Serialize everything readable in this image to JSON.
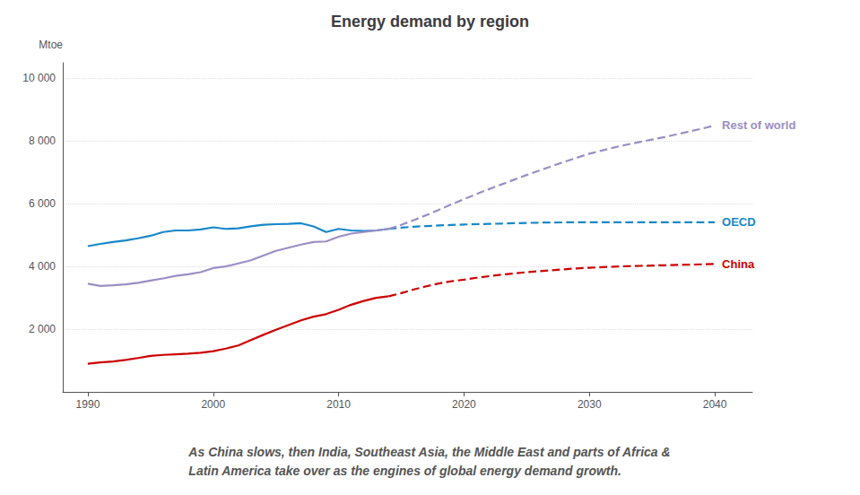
{
  "chart_data": {
    "type": "line",
    "title": "Energy demand by region",
    "subtitle": "As China slows, then India, Southeast Asia, the Middle East and parts of Africa &\nLatin America take over as the engines of global energy demand growth.",
    "ylabel": "Mtoe",
    "x": [
      1990,
      1991,
      1992,
      1993,
      1994,
      1995,
      1996,
      1997,
      1998,
      1999,
      2000,
      2001,
      2002,
      2003,
      2004,
      2005,
      2006,
      2007,
      2008,
      2009,
      2010,
      2011,
      2012,
      2013,
      2014,
      2015,
      2016,
      2017,
      2018,
      2019,
      2020,
      2021,
      2022,
      2023,
      2024,
      2025,
      2026,
      2027,
      2028,
      2029,
      2030,
      2031,
      2032,
      2033,
      2034,
      2035,
      2036,
      2037,
      2038,
      2039,
      2040
    ],
    "series": [
      {
        "name": "OECD",
        "color": "#1787C8",
        "line_style": "solid",
        "values": [
          4650,
          4720,
          4780,
          4830,
          4900,
          4980,
          5100,
          5150,
          5150,
          5180,
          5250,
          5200,
          5220,
          5280,
          5330,
          5350,
          5360,
          5380,
          5280,
          5100,
          5200,
          5150,
          5130,
          5150,
          5200,
          null,
          null,
          null,
          null,
          null,
          null,
          null,
          null,
          null,
          null,
          null,
          null,
          null,
          null,
          null,
          null,
          null,
          null,
          null,
          null,
          null,
          null,
          null,
          null,
          null,
          null
        ]
      },
      {
        "name": "OECD",
        "color": "#1787C8",
        "line_style": "dashed",
        "values": [
          null,
          null,
          null,
          null,
          null,
          null,
          null,
          null,
          null,
          null,
          null,
          null,
          null,
          null,
          null,
          null,
          null,
          null,
          null,
          null,
          null,
          null,
          null,
          null,
          5200,
          5240,
          5270,
          5290,
          5310,
          5325,
          5340,
          5350,
          5360,
          5370,
          5380,
          5390,
          5400,
          5405,
          5408,
          5410,
          5410,
          5410,
          5410,
          5410,
          5410,
          5410,
          5410,
          5410,
          5410,
          5410,
          5410
        ]
      },
      {
        "name": "China",
        "color": "#CC0000",
        "line_style": "solid",
        "values": [
          900,
          940,
          970,
          1020,
          1080,
          1150,
          1180,
          1200,
          1220,
          1250,
          1300,
          1380,
          1480,
          1650,
          1820,
          1980,
          2130,
          2280,
          2400,
          2480,
          2620,
          2780,
          2900,
          3000,
          3050,
          null,
          null,
          null,
          null,
          null,
          null,
          null,
          null,
          null,
          null,
          null,
          null,
          null,
          null,
          null,
          null,
          null,
          null,
          null,
          null,
          null,
          null,
          null,
          null,
          null,
          null
        ]
      },
      {
        "name": "China",
        "color": "#CC0000",
        "line_style": "dashed",
        "values": [
          null,
          null,
          null,
          null,
          null,
          null,
          null,
          null,
          null,
          null,
          null,
          null,
          null,
          null,
          null,
          null,
          null,
          null,
          null,
          null,
          null,
          null,
          null,
          null,
          3050,
          3150,
          3270,
          3370,
          3460,
          3530,
          3580,
          3640,
          3690,
          3740,
          3780,
          3820,
          3850,
          3880,
          3910,
          3940,
          3960,
          3980,
          3995,
          4010,
          4020,
          4030,
          4040,
          4050,
          4060,
          4070,
          4080
        ]
      },
      {
        "name": "Rest of world",
        "color": "#9B8EC4",
        "line_style": "solid",
        "values": [
          3450,
          3380,
          3400,
          3430,
          3480,
          3550,
          3620,
          3700,
          3750,
          3820,
          3950,
          4000,
          4100,
          4200,
          4350,
          4500,
          4600,
          4700,
          4780,
          4800,
          4950,
          5050,
          5100,
          5150,
          5200,
          null,
          null,
          null,
          null,
          null,
          null,
          null,
          null,
          null,
          null,
          null,
          null,
          null,
          null,
          null,
          null,
          null,
          null,
          null,
          null,
          null,
          null,
          null,
          null,
          null,
          null
        ]
      },
      {
        "name": "Rest of world",
        "color": "#9B8EC4",
        "line_style": "dashed",
        "values": [
          null,
          null,
          null,
          null,
          null,
          null,
          null,
          null,
          null,
          null,
          null,
          null,
          null,
          null,
          null,
          null,
          null,
          null,
          null,
          null,
          null,
          null,
          null,
          null,
          5200,
          5330,
          5480,
          5640,
          5810,
          5980,
          6150,
          6310,
          6470,
          6620,
          6770,
          6920,
          7060,
          7200,
          7340,
          7470,
          7600,
          7700,
          7800,
          7890,
          7970,
          8050,
          8130,
          8220,
          8310,
          8400,
          8500
        ]
      }
    ],
    "xlim": [
      1988,
      2043
    ],
    "xticks": [
      1990,
      2000,
      2010,
      2020,
      2030,
      2040
    ],
    "ylim": [
      0,
      10500
    ],
    "yticks": [
      {
        "value": 2000,
        "label": "2 000"
      },
      {
        "value": 4000,
        "label": "4 000"
      },
      {
        "value": 6000,
        "label": "6 000"
      },
      {
        "value": 8000,
        "label": "8 000"
      },
      {
        "value": 10000,
        "label": "10 000"
      }
    ],
    "grid": true
  }
}
